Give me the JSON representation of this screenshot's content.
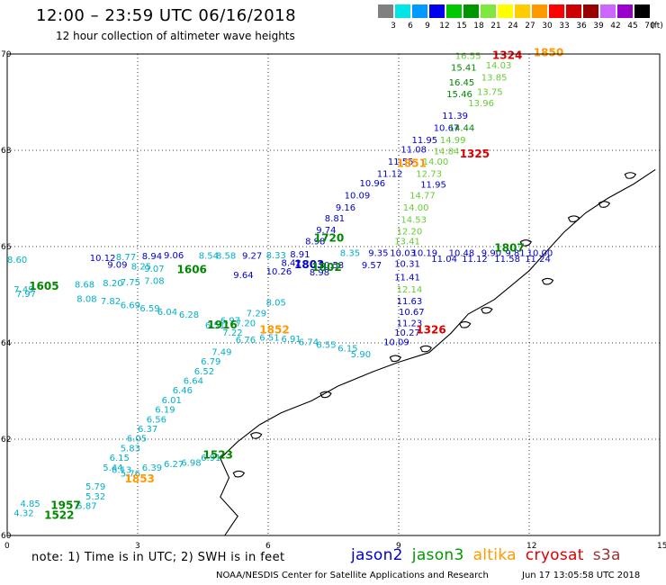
{
  "header": {
    "title": "12:00 – 23:59 UTC 06/16/2018",
    "subtitle": "12 hour collection of altimeter wave heights"
  },
  "legend": {
    "unit": "(ft)",
    "bins": [
      {
        "label": "3",
        "color": "#808080"
      },
      {
        "label": "6",
        "color": "#00e6e6"
      },
      {
        "label": "9",
        "color": "#0099ff"
      },
      {
        "label": "12",
        "color": "#0000ee"
      },
      {
        "label": "15",
        "color": "#00c800"
      },
      {
        "label": "18",
        "color": "#009600"
      },
      {
        "label": "21",
        "color": "#80e640"
      },
      {
        "label": "24",
        "color": "#ffff00"
      },
      {
        "label": "27",
        "color": "#ffcc00"
      },
      {
        "label": "30",
        "color": "#ff9900"
      },
      {
        "label": "33",
        "color": "#ff0000"
      },
      {
        "label": "36",
        "color": "#cc0000"
      },
      {
        "label": "39",
        "color": "#990000"
      },
      {
        "label": "42",
        "color": "#cc66ff"
      },
      {
        "label": "45",
        "color": "#9900cc"
      },
      {
        "label": "70",
        "color": "#000000"
      }
    ]
  },
  "map": {
    "lat_ticks": [
      "70",
      "68",
      "66",
      "64",
      "62",
      "60"
    ],
    "lon_ticks": [
      "0",
      "3",
      "6",
      "9",
      "12",
      "15"
    ],
    "lat_range": [
      60,
      70
    ],
    "lon_range": [
      0,
      15
    ]
  },
  "mission_colors": {
    "jason2": "#0000cc",
    "jason3": "#008800",
    "altika": "#ff9900",
    "cryosat": "#dd0000",
    "s3a": "#993333",
    "jason3_light": "#66cc33",
    "cyan": "#00b0c8"
  },
  "time_labels": [
    {
      "text": "1324",
      "mission": "cryosat",
      "lon": 11.15,
      "lat": 69.9
    },
    {
      "text": "1850",
      "mission": "altika",
      "lon": 12.1,
      "lat": 69.95
    },
    {
      "text": "1325",
      "mission": "cryosat",
      "lon": 10.4,
      "lat": 67.85
    },
    {
      "text": "1851",
      "mission": "altika",
      "lon": 8.95,
      "lat": 67.65
    },
    {
      "text": "1720",
      "mission": "jason3",
      "lon": 7.05,
      "lat": 66.1
    },
    {
      "text": "1807",
      "mission": "jason3",
      "lon": 11.2,
      "lat": 65.9
    },
    {
      "text": "1803",
      "mission": "jason2",
      "lon": 6.6,
      "lat": 65.55
    },
    {
      "text": "1802",
      "mission": "jason3",
      "lon": 7.0,
      "lat": 65.5
    },
    {
      "text": "1606",
      "mission": "jason3",
      "lon": 3.9,
      "lat": 65.45
    },
    {
      "text": "1605",
      "mission": "jason3",
      "lon": 0.5,
      "lat": 65.1
    },
    {
      "text": "1326",
      "mission": "cryosat",
      "lon": 9.4,
      "lat": 64.2
    },
    {
      "text": "1916",
      "mission": "jason3",
      "lon": 4.6,
      "lat": 64.3
    },
    {
      "text": "1852",
      "mission": "altika",
      "lon": 5.8,
      "lat": 64.2
    },
    {
      "text": "1523",
      "mission": "jason3",
      "lon": 4.5,
      "lat": 61.6
    },
    {
      "text": "1853",
      "mission": "altika",
      "lon": 2.7,
      "lat": 61.1
    },
    {
      "text": "1957",
      "mission": "jason3",
      "lon": 1.0,
      "lat": 60.55
    },
    {
      "text": "1522",
      "mission": "jason3",
      "lon": 0.85,
      "lat": 60.35
    }
  ],
  "observations": [
    {
      "text": "16.55",
      "mission": "jason3_light",
      "lon": 10.3,
      "lat": 69.9
    },
    {
      "text": "14.03",
      "mission": "jason3_light",
      "lon": 11.0,
      "lat": 69.7
    },
    {
      "text": "15.41",
      "mission": "jason3",
      "lon": 10.2,
      "lat": 69.65
    },
    {
      "text": "13.85",
      "mission": "jason3_light",
      "lon": 10.9,
      "lat": 69.45
    },
    {
      "text": "16.45",
      "mission": "jason3",
      "lon": 10.15,
      "lat": 69.35
    },
    {
      "text": "13.75",
      "mission": "jason3_light",
      "lon": 10.8,
      "lat": 69.15
    },
    {
      "text": "15.46",
      "mission": "jason3",
      "lon": 10.1,
      "lat": 69.1
    },
    {
      "text": "13.96",
      "mission": "jason3_light",
      "lon": 10.6,
      "lat": 68.92
    },
    {
      "text": "11.39",
      "mission": "jason2",
      "lon": 10.0,
      "lat": 68.65
    },
    {
      "text": "10.67",
      "mission": "jason2",
      "lon": 9.8,
      "lat": 68.4
    },
    {
      "text": "14.44",
      "mission": "jason3",
      "lon": 10.15,
      "lat": 68.4
    },
    {
      "text": "11.95",
      "mission": "jason2",
      "lon": 9.3,
      "lat": 68.15
    },
    {
      "text": "14.99",
      "mission": "jason3_light",
      "lon": 9.95,
      "lat": 68.15
    },
    {
      "text": "11.08",
      "mission": "jason2",
      "lon": 9.05,
      "lat": 67.95
    },
    {
      "text": "14.84",
      "mission": "jason3_light",
      "lon": 9.8,
      "lat": 67.92
    },
    {
      "text": "11.55",
      "mission": "jason2",
      "lon": 8.75,
      "lat": 67.7
    },
    {
      "text": "14.00",
      "mission": "jason3_light",
      "lon": 9.55,
      "lat": 67.7
    },
    {
      "text": "11.12",
      "mission": "jason2",
      "lon": 8.5,
      "lat": 67.45
    },
    {
      "text": "12.73",
      "mission": "jason3_light",
      "lon": 9.4,
      "lat": 67.45
    },
    {
      "text": "10.96",
      "mission": "jason2",
      "lon": 8.1,
      "lat": 67.25
    },
    {
      "text": "11.95",
      "mission": "jason2",
      "lon": 9.5,
      "lat": 67.22
    },
    {
      "text": "10.09",
      "mission": "jason2",
      "lon": 7.75,
      "lat": 67.0
    },
    {
      "text": "14.77",
      "mission": "jason3_light",
      "lon": 9.25,
      "lat": 67.0
    },
    {
      "text": "9.16",
      "mission": "jason2",
      "lon": 7.55,
      "lat": 66.75
    },
    {
      "text": "14.00",
      "mission": "jason3_light",
      "lon": 9.1,
      "lat": 66.75
    },
    {
      "text": "8.81",
      "mission": "jason2",
      "lon": 7.3,
      "lat": 66.52
    },
    {
      "text": "14.53",
      "mission": "jason3_light",
      "lon": 9.05,
      "lat": 66.5
    },
    {
      "text": "9.74",
      "mission": "jason2",
      "lon": 7.1,
      "lat": 66.28
    },
    {
      "text": "12.20",
      "mission": "jason3_light",
      "lon": 8.95,
      "lat": 66.25
    },
    {
      "text": "8.98",
      "mission": "jason2",
      "lon": 6.85,
      "lat": 66.05
    },
    {
      "text": "13.41",
      "mission": "jason3_light",
      "lon": 8.9,
      "lat": 66.05
    },
    {
      "text": "8.54",
      "mission": "cyan",
      "lon": 4.4,
      "lat": 65.75
    },
    {
      "text": "8.58",
      "mission": "cyan",
      "lon": 4.8,
      "lat": 65.75
    },
    {
      "text": "9.27",
      "mission": "jason2",
      "lon": 5.4,
      "lat": 65.75
    },
    {
      "text": "8.33",
      "mission": "cyan",
      "lon": 5.95,
      "lat": 65.76
    },
    {
      "text": "8.91",
      "mission": "jason2",
      "lon": 6.5,
      "lat": 65.78
    },
    {
      "text": "8.35",
      "mission": "cyan",
      "lon": 7.65,
      "lat": 65.8
    },
    {
      "text": "9.35",
      "mission": "jason2",
      "lon": 8.3,
      "lat": 65.8
    },
    {
      "text": "10.03",
      "mission": "jason2",
      "lon": 8.8,
      "lat": 65.8
    },
    {
      "text": "10.19",
      "mission": "jason2",
      "lon": 9.3,
      "lat": 65.8
    },
    {
      "text": "10.48",
      "mission": "jason2",
      "lon": 10.15,
      "lat": 65.8
    },
    {
      "text": "9.90",
      "mission": "jason2",
      "lon": 10.9,
      "lat": 65.8
    },
    {
      "text": "9.81",
      "mission": "jason2",
      "lon": 11.45,
      "lat": 65.8
    },
    {
      "text": "10.00",
      "mission": "jason2",
      "lon": 11.95,
      "lat": 65.8
    },
    {
      "text": "11.04",
      "mission": "jason2",
      "lon": 9.75,
      "lat": 65.68
    },
    {
      "text": "11.12",
      "mission": "jason2",
      "lon": 10.45,
      "lat": 65.68
    },
    {
      "text": "11.58",
      "mission": "jason2",
      "lon": 11.2,
      "lat": 65.68
    },
    {
      "text": "11.24",
      "mission": "jason2",
      "lon": 11.9,
      "lat": 65.68
    },
    {
      "text": "8.42",
      "mission": "jason2",
      "lon": 6.3,
      "lat": 65.6
    },
    {
      "text": "10.53",
      "mission": "jason2",
      "lon": 7.15,
      "lat": 65.55
    },
    {
      "text": "9.57",
      "mission": "jason2",
      "lon": 8.15,
      "lat": 65.55
    },
    {
      "text": "10.31",
      "mission": "jason2",
      "lon": 8.9,
      "lat": 65.58
    },
    {
      "text": "11.41",
      "mission": "jason2",
      "lon": 8.9,
      "lat": 65.3
    },
    {
      "text": "8.98",
      "mission": "jason2",
      "lon": 6.95,
      "lat": 65.4
    },
    {
      "text": "9.07",
      "mission": "cyan",
      "lon": 3.15,
      "lat": 65.48
    },
    {
      "text": "9.64",
      "mission": "jason2",
      "lon": 5.2,
      "lat": 65.35
    },
    {
      "text": "10.26",
      "mission": "jason2",
      "lon": 5.95,
      "lat": 65.42
    },
    {
      "text": "12.14",
      "mission": "jason3_light",
      "lon": 8.95,
      "lat": 65.05
    },
    {
      "text": "11.63",
      "mission": "jason2",
      "lon": 8.95,
      "lat": 64.8
    },
    {
      "text": "8.05",
      "mission": "cyan",
      "lon": 5.95,
      "lat": 64.78
    },
    {
      "text": "10.67",
      "mission": "jason2",
      "lon": 9.0,
      "lat": 64.58
    },
    {
      "text": "7.29",
      "mission": "cyan",
      "lon": 5.5,
      "lat": 64.55
    },
    {
      "text": "11.23",
      "mission": "jason2",
      "lon": 8.95,
      "lat": 64.35
    },
    {
      "text": "7.20",
      "mission": "cyan",
      "lon": 5.25,
      "lat": 64.35
    },
    {
      "text": "10.27",
      "mission": "jason2",
      "lon": 8.9,
      "lat": 64.15
    },
    {
      "text": "7.22",
      "mission": "cyan",
      "lon": 4.95,
      "lat": 64.15
    },
    {
      "text": "10.09",
      "mission": "jason2",
      "lon": 8.65,
      "lat": 63.95
    },
    {
      "text": "7.49",
      "mission": "cyan",
      "lon": 4.7,
      "lat": 63.75
    },
    {
      "text": "6.79",
      "mission": "cyan",
      "lon": 4.45,
      "lat": 63.55
    },
    {
      "text": "6.52",
      "mission": "cyan",
      "lon": 4.3,
      "lat": 63.35
    },
    {
      "text": "6.64",
      "mission": "cyan",
      "lon": 4.05,
      "lat": 63.15
    },
    {
      "text": "6.46",
      "mission": "cyan",
      "lon": 3.8,
      "lat": 62.95
    },
    {
      "text": "6.01",
      "mission": "cyan",
      "lon": 3.55,
      "lat": 62.75
    },
    {
      "text": "6.19",
      "mission": "cyan",
      "lon": 3.4,
      "lat": 62.55
    },
    {
      "text": "6.56",
      "mission": "cyan",
      "lon": 3.2,
      "lat": 62.35
    },
    {
      "text": "6.37",
      "mission": "cyan",
      "lon": 3.0,
      "lat": 62.15
    },
    {
      "text": "6.05",
      "mission": "cyan",
      "lon": 2.75,
      "lat": 61.95
    },
    {
      "text": "5.83",
      "mission": "cyan",
      "lon": 2.6,
      "lat": 61.75
    },
    {
      "text": "6.15",
      "mission": "cyan",
      "lon": 2.35,
      "lat": 61.55
    },
    {
      "text": "5.44",
      "mission": "cyan",
      "lon": 2.2,
      "lat": 61.35
    },
    {
      "text": "6.39",
      "mission": "cyan",
      "lon": 3.1,
      "lat": 61.35
    },
    {
      "text": "6.27",
      "mission": "cyan",
      "lon": 3.6,
      "lat": 61.42
    },
    {
      "text": "6.13",
      "mission": "cyan",
      "lon": 2.4,
      "lat": 61.3
    },
    {
      "text": "5.76",
      "mission": "cyan",
      "lon": 2.6,
      "lat": 61.22
    },
    {
      "text": "5.79",
      "mission": "cyan",
      "lon": 1.8,
      "lat": 60.95
    },
    {
      "text": "5.32",
      "mission": "cyan",
      "lon": 1.8,
      "lat": 60.75
    },
    {
      "text": "5.87",
      "mission": "cyan",
      "lon": 1.6,
      "lat": 60.55
    },
    {
      "text": "4.85",
      "mission": "cyan",
      "lon": 0.3,
      "lat": 60.6
    },
    {
      "text": "4.32",
      "mission": "cyan",
      "lon": 0.15,
      "lat": 60.4
    },
    {
      "text": "10.12",
      "mission": "jason2",
      "lon": 1.9,
      "lat": 65.7
    },
    {
      "text": "8.77",
      "mission": "cyan",
      "lon": 2.5,
      "lat": 65.72
    },
    {
      "text": "8.94",
      "mission": "jason2",
      "lon": 3.1,
      "lat": 65.74
    },
    {
      "text": "9.06",
      "mission": "jason2",
      "lon": 3.6,
      "lat": 65.76
    },
    {
      "text": "8.60",
      "mission": "cyan",
      "lon": 0.0,
      "lat": 65.66
    },
    {
      "text": "9.09",
      "mission": "jason2",
      "lon": 2.3,
      "lat": 65.56
    },
    {
      "text": "8.25",
      "mission": "cyan",
      "lon": 2.85,
      "lat": 65.52
    },
    {
      "text": "8.68",
      "mission": "cyan",
      "lon": 1.55,
      "lat": 65.15
    },
    {
      "text": "8.20",
      "mission": "cyan",
      "lon": 2.2,
      "lat": 65.18
    },
    {
      "text": "7.75",
      "mission": "cyan",
      "lon": 2.6,
      "lat": 65.2
    },
    {
      "text": "7.08",
      "mission": "cyan",
      "lon": 3.15,
      "lat": 65.22
    },
    {
      "text": "7.49",
      "mission": "cyan",
      "lon": 0.15,
      "lat": 65.05
    },
    {
      "text": "7.97",
      "mission": "cyan",
      "lon": 0.2,
      "lat": 64.95
    },
    {
      "text": "8.08",
      "mission": "cyan",
      "lon": 1.6,
      "lat": 64.85
    },
    {
      "text": "7.82",
      "mission": "cyan",
      "lon": 2.15,
      "lat": 64.8
    },
    {
      "text": "6.69",
      "mission": "cyan",
      "lon": 2.6,
      "lat": 64.72
    },
    {
      "text": "6.59",
      "mission": "cyan",
      "lon": 3.05,
      "lat": 64.65
    },
    {
      "text": "6.04",
      "mission": "cyan",
      "lon": 3.45,
      "lat": 64.58
    },
    {
      "text": "6.28",
      "mission": "cyan",
      "lon": 3.95,
      "lat": 64.52
    },
    {
      "text": "6.91",
      "mission": "cyan",
      "lon": 6.3,
      "lat": 64.02
    },
    {
      "text": "6.74",
      "mission": "cyan",
      "lon": 6.7,
      "lat": 63.95
    },
    {
      "text": "6.55",
      "mission": "cyan",
      "lon": 7.1,
      "lat": 63.9
    },
    {
      "text": "6.15",
      "mission": "cyan",
      "lon": 7.6,
      "lat": 63.82
    },
    {
      "text": "5.90",
      "mission": "cyan",
      "lon": 7.9,
      "lat": 63.7
    },
    {
      "text": "6.51",
      "mission": "cyan",
      "lon": 5.8,
      "lat": 64.05
    },
    {
      "text": "6.76",
      "mission": "cyan",
      "lon": 5.25,
      "lat": 64.0
    },
    {
      "text": "6.51",
      "mission": "cyan",
      "lon": 4.55,
      "lat": 64.3
    },
    {
      "text": "6.97",
      "mission": "cyan",
      "lon": 4.9,
      "lat": 64.4
    },
    {
      "text": "6.98",
      "mission": "cyan",
      "lon": 4.0,
      "lat": 61.45
    },
    {
      "text": "6.91",
      "mission": "cyan",
      "lon": 4.45,
      "lat": 61.55
    }
  ],
  "footer": {
    "note": "note:  1) Time is in UTC;  2) SWH is in feet",
    "missions": [
      {
        "name": "jason2",
        "color": "#0000cc"
      },
      {
        "name": "jason3",
        "color": "#009900"
      },
      {
        "name": "altika",
        "color": "#ff9900"
      },
      {
        "name": "cryosat",
        "color": "#dd0000"
      },
      {
        "name": "s3a",
        "color": "#993333"
      }
    ],
    "credit": "NOAA/NESDIS Center for Satellite Applications and Research",
    "stamp": "Jun 17 13:05:58 UTC 2018"
  }
}
